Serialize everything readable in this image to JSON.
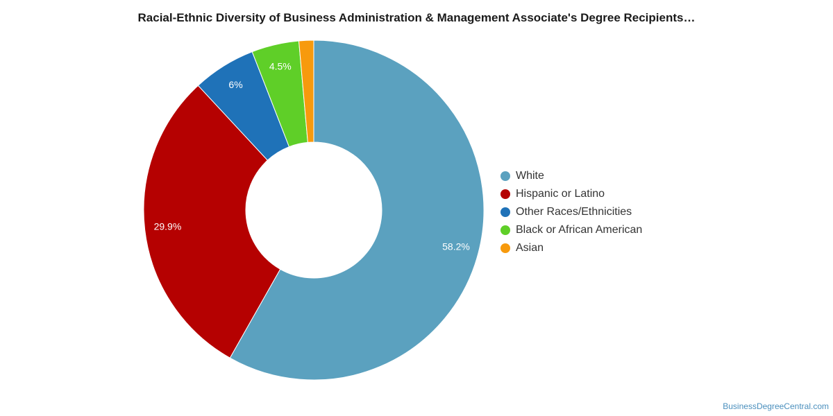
{
  "chart_data": {
    "type": "pie",
    "variant": "donut",
    "title": "Racial-Ethnic Diversity of Business Administration & Management Associate's Degree Recipients…",
    "legend_position": "right",
    "slices": [
      {
        "name": "White",
        "value": 58.2,
        "label": "58.2%",
        "color": "#5ba1bf"
      },
      {
        "name": "Hispanic or Latino",
        "value": 29.9,
        "label": "29.9%",
        "color": "#b50101"
      },
      {
        "name": "Other Races/Ethnicities",
        "value": 6,
        "label": "6%",
        "color": "#1f72b8"
      },
      {
        "name": "Black or African American",
        "value": 4.5,
        "label": "4.5%",
        "color": "#5fcf28"
      },
      {
        "name": "Asian",
        "value": 1.4,
        "label": "",
        "color": "#f79a0d"
      }
    ]
  },
  "credit": "BusinessDegreeCentral.com"
}
